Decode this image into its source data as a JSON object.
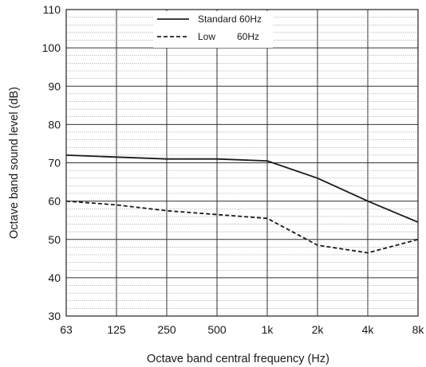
{
  "chart_data": {
    "type": "line",
    "xlabel": "Octave band central frequency (Hz)",
    "ylabel": "Octave band sound level (dB)",
    "categories": [
      "63",
      "125",
      "250",
      "500",
      "1k",
      "2k",
      "4k",
      "8k"
    ],
    "ylim": [
      30,
      110
    ],
    "yticks": [
      "30",
      "40",
      "50",
      "60",
      "70",
      "80",
      "90",
      "100",
      "110"
    ],
    "grid": true,
    "legend_position": "top-center",
    "series": [
      {
        "name": "Standard",
        "label_suffix": "60Hz",
        "line_style": "solid",
        "values": [
          72,
          71.5,
          71,
          71,
          70.5,
          66,
          60,
          54.5
        ]
      },
      {
        "name": "Low",
        "label_suffix": "60Hz",
        "line_style": "dashed",
        "values": [
          60,
          59,
          57.5,
          56.5,
          55.5,
          48.5,
          46.5,
          50
        ]
      }
    ]
  }
}
